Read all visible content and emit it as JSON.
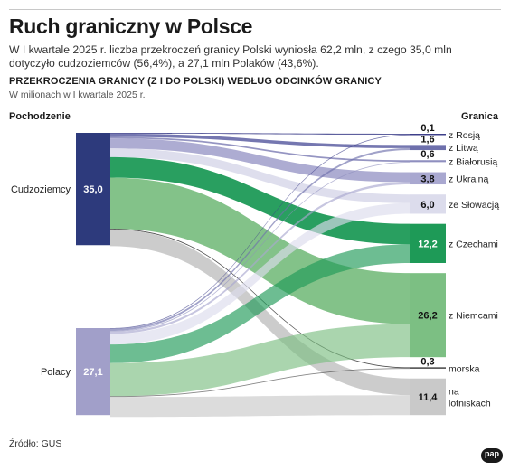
{
  "header": {
    "title": "Ruch graniczny w Polsce",
    "lead": "W I kwartale 2025 r. liczba przekroczeń granicy Polski wyniosła 62,2 mln, z czego 35,0 mln dotyczyło cudzoziemców (56,4%), a 27,1 mln Polaków (43,6%).",
    "subtitle": "PRZEKROCZENIA GRANICY (Z I DO POLSKI) WEDŁUG ODCINKÓW GRANICY",
    "unit_note": "W milionach w I kwartale 2025 r."
  },
  "columns": {
    "left": "Pochodzenie",
    "right": "Granica"
  },
  "source": "Źródło: GUS",
  "logo_text": "pap",
  "colors": {
    "foreigners_node": "#2d3a7c",
    "poles_node": "#a19fc9",
    "russia": "#3d3f8a",
    "lithuania": "#6e70ac",
    "belarus": "#8f8fbf",
    "ukraine": "#a9a8d0",
    "slovakia": "#dcdcec",
    "czechia": "#1e9a57",
    "germany": "#7cbf83",
    "sea": "#444444",
    "airports": "#c9c9c9"
  },
  "chart_data": {
    "type": "sankey",
    "units": "mln",
    "sources": [
      {
        "key": "foreigners",
        "label": "Cudzoziemcy",
        "value": 35.0,
        "value_label": "35,0"
      },
      {
        "key": "poles",
        "label": "Polacy",
        "value": 27.1,
        "value_label": "27,1"
      }
    ],
    "targets": [
      {
        "key": "russia",
        "label": "z Rosją",
        "value": 0.1,
        "value_label": "0,1"
      },
      {
        "key": "lithuania",
        "label": "z Litwą",
        "value": 1.6,
        "value_label": "1,6"
      },
      {
        "key": "belarus",
        "label": "z Białorusią",
        "value": 0.6,
        "value_label": "0,6"
      },
      {
        "key": "ukraine",
        "label": "z Ukrainą",
        "value": 3.8,
        "value_label": "3,8"
      },
      {
        "key": "slovakia",
        "label": "ze Słowacją",
        "value": 6.0,
        "value_label": "6,0"
      },
      {
        "key": "czechia",
        "label": "z Czechami",
        "value": 12.2,
        "value_label": "12,2"
      },
      {
        "key": "germany",
        "label": "z Niemcami",
        "value": 26.2,
        "value_label": "26,2"
      },
      {
        "key": "sea",
        "label": "morska",
        "value": 0.3,
        "value_label": "0,3"
      },
      {
        "key": "airports",
        "label": "na lotniskach",
        "value": 11.4,
        "value_label": "11,4"
      }
    ],
    "flows": [
      {
        "source": "foreigners",
        "target": "russia",
        "value": 0.1
      },
      {
        "source": "foreigners",
        "target": "lithuania",
        "value": 1.0
      },
      {
        "source": "foreigners",
        "target": "belarus",
        "value": 0.5
      },
      {
        "source": "foreigners",
        "target": "ukraine",
        "value": 3.1
      },
      {
        "source": "foreigners",
        "target": "slovakia",
        "value": 2.7
      },
      {
        "source": "foreigners",
        "target": "czechia",
        "value": 6.4
      },
      {
        "source": "foreigners",
        "target": "germany",
        "value": 15.9
      },
      {
        "source": "foreigners",
        "target": "sea",
        "value": 0.1
      },
      {
        "source": "foreigners",
        "target": "airports",
        "value": 5.2
      },
      {
        "source": "poles",
        "target": "russia",
        "value": 0.01
      },
      {
        "source": "poles",
        "target": "lithuania",
        "value": 0.6
      },
      {
        "source": "poles",
        "target": "belarus",
        "value": 0.1
      },
      {
        "source": "poles",
        "target": "ukraine",
        "value": 0.7
      },
      {
        "source": "poles",
        "target": "slovakia",
        "value": 3.3
      },
      {
        "source": "poles",
        "target": "czechia",
        "value": 5.8
      },
      {
        "source": "poles",
        "target": "germany",
        "value": 10.3
      },
      {
        "source": "poles",
        "target": "sea",
        "value": 0.2
      },
      {
        "source": "poles",
        "target": "airports",
        "value": 6.2
      }
    ]
  }
}
